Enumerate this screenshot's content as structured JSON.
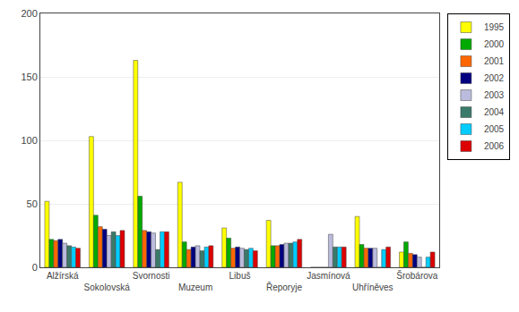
{
  "chart_data": {
    "type": "bar",
    "categories": [
      "Alžírská",
      "Sokolovská",
      "Svornosti",
      "Muzeum",
      "Libuš",
      "Řeporyje",
      "Jasmínová",
      "Uhříněves",
      "Šrobárova"
    ],
    "series": [
      {
        "name": "1995",
        "color": "#ffff00",
        "values": [
          52,
          103,
          163,
          67,
          31,
          37,
          0,
          40,
          12
        ]
      },
      {
        "name": "2000",
        "color": "#00aa00",
        "values": [
          22,
          41,
          56,
          20,
          23,
          17,
          0,
          18,
          20
        ]
      },
      {
        "name": "2001",
        "color": "#ff6600",
        "values": [
          21,
          32,
          29,
          14,
          15,
          17,
          0,
          15,
          11
        ]
      },
      {
        "name": "2002",
        "color": "#000080",
        "values": [
          22,
          30,
          28,
          16,
          16,
          18,
          0,
          15,
          10
        ]
      },
      {
        "name": "2003",
        "color": "#bbbbdd",
        "values": [
          19,
          25,
          27,
          17,
          15,
          19,
          26,
          15,
          8
        ]
      },
      {
        "name": "2004",
        "color": "#3a7a6a",
        "values": [
          17,
          28,
          14,
          13,
          14,
          19,
          16,
          0,
          0
        ]
      },
      {
        "name": "2005",
        "color": "#00ccff",
        "values": [
          16,
          25,
          28,
          16,
          15,
          20,
          16,
          14,
          8
        ]
      },
      {
        "name": "2006",
        "color": "#dd0000",
        "values": [
          15,
          29,
          28,
          17,
          13,
          22,
          16,
          16,
          12
        ]
      }
    ],
    "ylim": [
      0,
      200
    ],
    "yticks": [
      0,
      50,
      100,
      150,
      200
    ],
    "grid": true,
    "legend": "upper right"
  }
}
